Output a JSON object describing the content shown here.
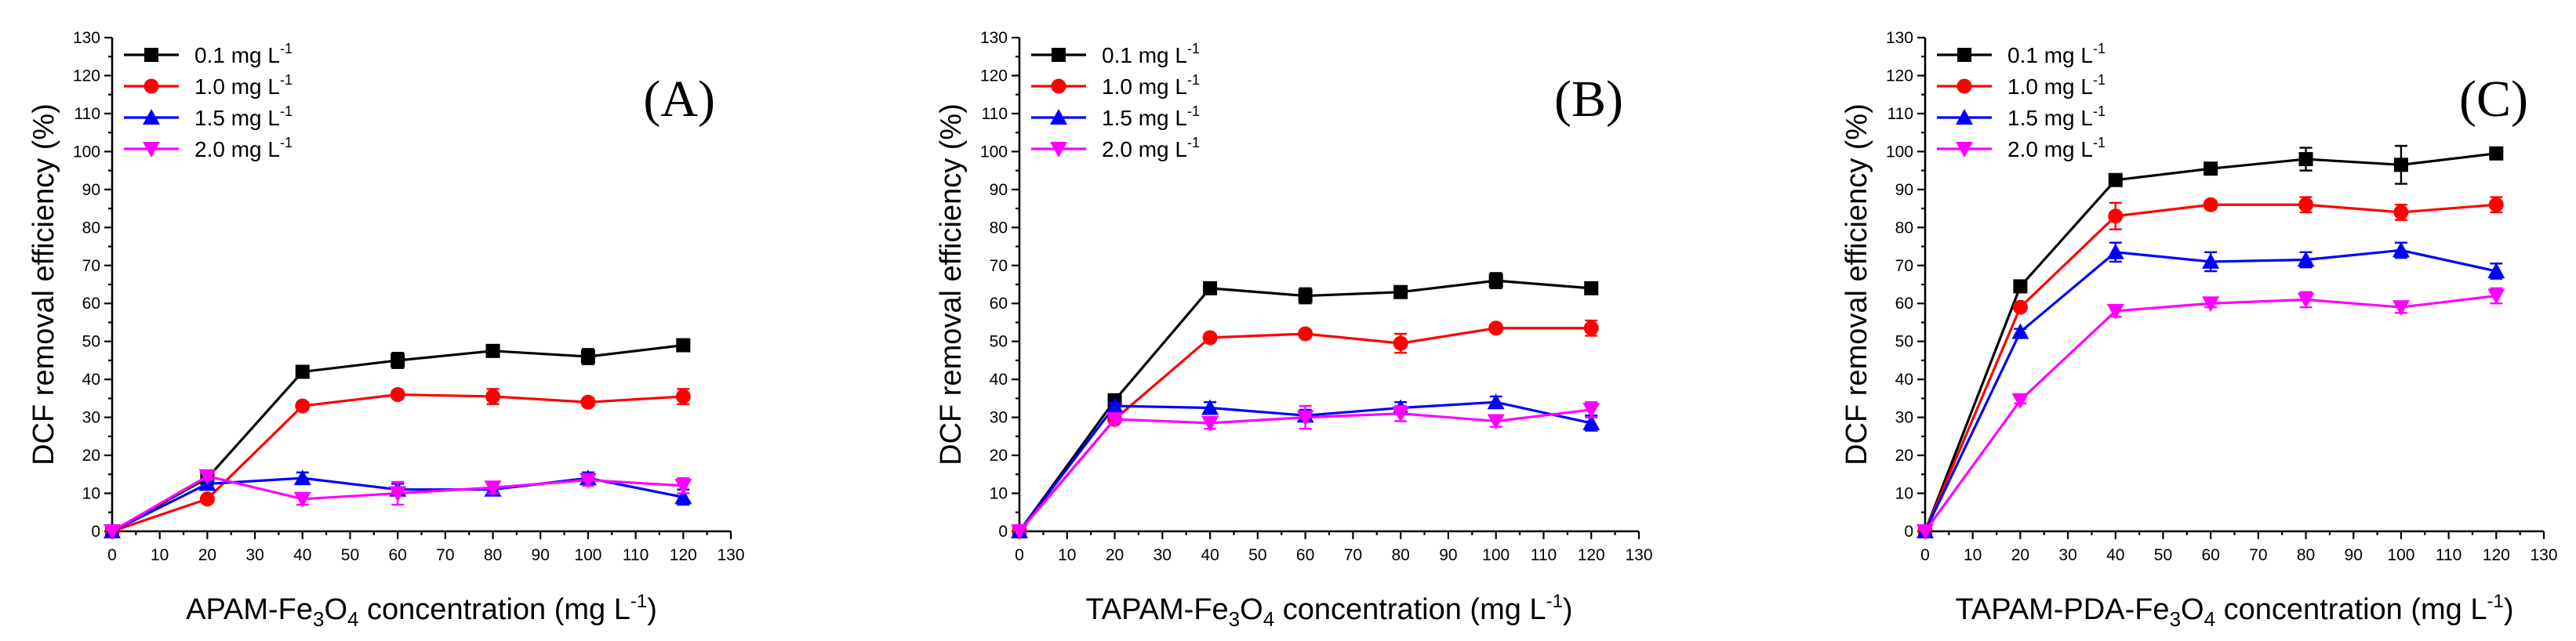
{
  "chart_data": [
    {
      "type": "line",
      "panel_label": "(A)",
      "xlabel": "APAM-Fe3O4 concentration (mg L-1)",
      "xlabel_parts": {
        "prefix": "APAM-Fe",
        "sub1": "3",
        "mid": "O",
        "sub2": "4",
        "suffix": " concentration (mg L",
        "sup": "-1",
        "end": ")"
      },
      "ylabel": "DCF removal efficiency (%)",
      "xlim": [
        0,
        130
      ],
      "ylim": [
        0,
        130
      ],
      "xticks": [
        "0",
        "10",
        "20",
        "30",
        "40",
        "50",
        "60",
        "70",
        "80",
        "90",
        "100",
        "110",
        "120",
        "130"
      ],
      "yticks": [
        "0",
        "10",
        "20",
        "30",
        "40",
        "50",
        "60",
        "70",
        "80",
        "90",
        "100",
        "110",
        "120",
        "130"
      ],
      "legend_position": "top-left",
      "x": [
        0,
        20,
        40,
        60,
        80,
        100,
        120
      ],
      "series": [
        {
          "name": "0.1 mg L-1",
          "label_main": "0.1 mg L",
          "label_sup": "-1",
          "color": "#000000",
          "marker": "square",
          "values": [
            0,
            14,
            42,
            45,
            47.5,
            46,
            49
          ],
          "errors": [
            0,
            0.8,
            1.0,
            2.0,
            1.0,
            2.0,
            1.0
          ]
        },
        {
          "name": "1.0 mg L-1",
          "label_main": "1.0 mg L",
          "label_sup": "-1",
          "color": "#ff0000",
          "marker": "circle",
          "values": [
            0,
            8.5,
            33,
            36,
            35.5,
            34,
            35.5
          ],
          "errors": [
            0,
            0.8,
            1.0,
            1.0,
            2.0,
            1.0,
            2.0
          ]
        },
        {
          "name": "1.5 mg L-1",
          "label_main": "1.5 mg L",
          "label_sup": "-1",
          "color": "#0000ff",
          "marker": "triangle-up",
          "values": [
            0,
            12.5,
            14,
            11,
            11,
            14,
            9
          ],
          "errors": [
            0,
            0.8,
            1.5,
            1.5,
            1.5,
            1.5,
            2.0
          ]
        },
        {
          "name": "2.0 mg L-1",
          "label_main": "2.0 mg L",
          "label_sup": "-1",
          "color": "#ff00ff",
          "marker": "triangle-down",
          "values": [
            0,
            14.5,
            8.5,
            10,
            11.5,
            13.5,
            12
          ],
          "errors": [
            0,
            0.8,
            1.5,
            3.0,
            1.5,
            1.5,
            2.0
          ]
        }
      ]
    },
    {
      "type": "line",
      "panel_label": "(B)",
      "xlabel": "TAPAM-Fe3O4 concentration (mg L-1)",
      "xlabel_parts": {
        "prefix": "TAPAM-Fe",
        "sub1": "3",
        "mid": "O",
        "sub2": "4",
        "suffix": " concentration (mg L",
        "sup": "-1",
        "end": ")"
      },
      "ylabel": "DCF removal efficiency (%)",
      "xlim": [
        0,
        130
      ],
      "ylim": [
        0,
        130
      ],
      "xticks": [
        "0",
        "10",
        "20",
        "30",
        "40",
        "50",
        "60",
        "70",
        "80",
        "90",
        "100",
        "110",
        "120",
        "130"
      ],
      "yticks": [
        "0",
        "10",
        "20",
        "30",
        "40",
        "50",
        "60",
        "70",
        "80",
        "90",
        "100",
        "110",
        "120",
        "130"
      ],
      "legend_position": "top-left",
      "x": [
        0,
        20,
        40,
        60,
        80,
        100,
        120
      ],
      "series": [
        {
          "name": "0.1 mg L-1",
          "label_main": "0.1 mg L",
          "label_sup": "-1",
          "color": "#000000",
          "marker": "square",
          "values": [
            0,
            34.5,
            64,
            62,
            63,
            66,
            64
          ],
          "errors": [
            0,
            0.8,
            1.0,
            2.0,
            1.0,
            2.0,
            1.0
          ]
        },
        {
          "name": "1.0 mg L-1",
          "label_main": "1.0 mg L",
          "label_sup": "-1",
          "color": "#ff0000",
          "marker": "circle",
          "values": [
            0,
            29.5,
            51,
            52,
            49.5,
            53.5,
            53.5
          ],
          "errors": [
            0,
            0.8,
            1.0,
            1.0,
            2.5,
            1.0,
            2.0
          ]
        },
        {
          "name": "1.5 mg L-1",
          "label_main": "1.5 mg L",
          "label_sup": "-1",
          "color": "#0000ff",
          "marker": "triangle-up",
          "values": [
            0,
            33,
            32.5,
            30.5,
            32.5,
            34,
            28.5
          ],
          "errors": [
            0,
            0.8,
            1.5,
            1.5,
            1.5,
            1.5,
            2.0
          ]
        },
        {
          "name": "2.0 mg L-1",
          "label_main": "2.0 mg L",
          "label_sup": "-1",
          "color": "#ff00ff",
          "marker": "triangle-down",
          "values": [
            0,
            29.5,
            28.5,
            30,
            31,
            29,
            32
          ],
          "errors": [
            0,
            0.8,
            1.5,
            3.0,
            2.0,
            1.5,
            2.0
          ]
        }
      ]
    },
    {
      "type": "line",
      "panel_label": "(C)",
      "xlabel": "TAPAM-PDA-Fe3O4 concentration (mg L-1)",
      "xlabel_parts": {
        "prefix": "TAPAM-PDA-Fe",
        "sub1": "3",
        "mid": "O",
        "sub2": "4",
        "suffix": " concentration (mg L",
        "sup": "-1",
        "end": ")"
      },
      "ylabel": "DCF removal efficiency (%)",
      "xlim": [
        0,
        130
      ],
      "ylim": [
        0,
        130
      ],
      "xticks": [
        "0",
        "10",
        "20",
        "30",
        "40",
        "50",
        "60",
        "70",
        "80",
        "90",
        "100",
        "110",
        "120",
        "130"
      ],
      "yticks": [
        "0",
        "10",
        "20",
        "30",
        "40",
        "50",
        "60",
        "70",
        "80",
        "90",
        "100",
        "110",
        "120",
        "130"
      ],
      "legend_position": "top-left",
      "x": [
        0,
        20,
        40,
        60,
        80,
        100,
        120
      ],
      "series": [
        {
          "name": "0.1 mg L-1",
          "label_main": "0.1 mg L",
          "label_sup": "-1",
          "color": "#000000",
          "marker": "square",
          "values": [
            0,
            64.5,
            92.5,
            95.5,
            98,
            96.5,
            99.5
          ],
          "errors": [
            0,
            0.8,
            1.0,
            1.0,
            3.0,
            5.0,
            1.0
          ]
        },
        {
          "name": "1.0 mg L-1",
          "label_main": "1.0 mg L",
          "label_sup": "-1",
          "color": "#ff0000",
          "marker": "circle",
          "values": [
            0,
            59,
            83,
            86,
            86,
            84,
            86
          ],
          "errors": [
            0,
            0.8,
            3.5,
            1.0,
            2.0,
            2.0,
            2.0
          ]
        },
        {
          "name": "1.5 mg L-1",
          "label_main": "1.5 mg L",
          "label_sup": "-1",
          "color": "#0000ff",
          "marker": "triangle-up",
          "values": [
            0,
            52.5,
            73.5,
            71,
            71.5,
            74,
            68.5
          ],
          "errors": [
            0,
            0.8,
            2.5,
            2.5,
            2.0,
            2.0,
            2.0
          ]
        },
        {
          "name": "2.0 mg L-1",
          "label_main": "2.0 mg L",
          "label_sup": "-1",
          "color": "#ff00ff",
          "marker": "triangle-down",
          "values": [
            0,
            34.5,
            58,
            60,
            61,
            59,
            62
          ],
          "errors": [
            0,
            0.8,
            1.5,
            1.0,
            2.0,
            1.5,
            2.0
          ]
        }
      ]
    }
  ]
}
